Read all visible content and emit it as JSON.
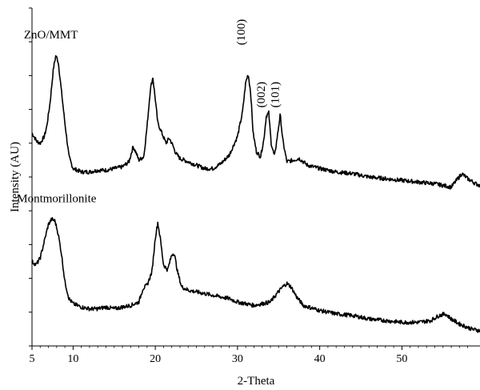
{
  "chart_data": {
    "type": "line",
    "xlabel": "2-Theta",
    "ylabel": "Intensity (AU)",
    "xlim": [
      5,
      59.5
    ],
    "ylim": [
      0,
      10
    ],
    "x_ticks": [
      5,
      10,
      20,
      30,
      40,
      50
    ],
    "grid": false,
    "legend": "none",
    "series": [
      {
        "name": "ZnO/MMT",
        "color": "#000000",
        "points": [
          [
            5.0,
            6.3
          ],
          [
            5.6,
            6.05
          ],
          [
            6.0,
            6.0
          ],
          [
            6.5,
            6.2
          ],
          [
            6.8,
            6.5
          ],
          [
            7.2,
            7.2
          ],
          [
            7.6,
            8.2
          ],
          [
            7.9,
            8.6
          ],
          [
            8.2,
            8.4
          ],
          [
            8.6,
            7.5
          ],
          [
            9.0,
            6.6
          ],
          [
            9.5,
            5.6
          ],
          [
            10.0,
            5.25
          ],
          [
            11.0,
            5.15
          ],
          [
            12.0,
            5.15
          ],
          [
            13.0,
            5.2
          ],
          [
            14.0,
            5.2
          ],
          [
            15.0,
            5.25
          ],
          [
            16.0,
            5.3
          ],
          [
            16.8,
            5.45
          ],
          [
            17.3,
            5.9
          ],
          [
            17.6,
            5.75
          ],
          [
            18.0,
            5.5
          ],
          [
            18.6,
            5.6
          ],
          [
            19.0,
            6.5
          ],
          [
            19.4,
            7.6
          ],
          [
            19.7,
            7.95
          ],
          [
            20.0,
            7.3
          ],
          [
            20.3,
            6.6
          ],
          [
            20.8,
            6.3
          ],
          [
            21.3,
            6.0
          ],
          [
            21.7,
            6.15
          ],
          [
            22.1,
            5.95
          ],
          [
            22.5,
            5.7
          ],
          [
            23.0,
            5.55
          ],
          [
            24.0,
            5.45
          ],
          [
            25.0,
            5.35
          ],
          [
            26.0,
            5.25
          ],
          [
            27.0,
            5.25
          ],
          [
            28.0,
            5.4
          ],
          [
            29.0,
            5.65
          ],
          [
            30.0,
            6.2
          ],
          [
            30.6,
            6.9
          ],
          [
            31.0,
            7.8
          ],
          [
            31.3,
            8.05
          ],
          [
            31.6,
            7.5
          ],
          [
            31.9,
            6.3
          ],
          [
            32.3,
            5.75
          ],
          [
            32.8,
            5.6
          ],
          [
            33.2,
            6.1
          ],
          [
            33.5,
            6.8
          ],
          [
            33.8,
            6.9
          ],
          [
            34.1,
            6.0
          ],
          [
            34.5,
            5.6
          ],
          [
            34.9,
            6.3
          ],
          [
            35.2,
            6.85
          ],
          [
            35.5,
            6.1
          ],
          [
            36.0,
            5.45
          ],
          [
            36.8,
            5.5
          ],
          [
            37.5,
            5.55
          ],
          [
            38.5,
            5.35
          ],
          [
            40.0,
            5.25
          ],
          [
            42.0,
            5.15
          ],
          [
            44.0,
            5.1
          ],
          [
            46.0,
            5.0
          ],
          [
            48.0,
            4.95
          ],
          [
            50.0,
            4.9
          ],
          [
            52.0,
            4.85
          ],
          [
            54.0,
            4.8
          ],
          [
            55.0,
            4.75
          ],
          [
            56.0,
            4.7
          ],
          [
            56.8,
            4.95
          ],
          [
            57.3,
            5.1
          ],
          [
            58.0,
            4.95
          ],
          [
            59.0,
            4.8
          ],
          [
            59.5,
            4.75
          ]
        ]
      },
      {
        "name": "Montmorillonite",
        "color": "#000000",
        "points": [
          [
            5.0,
            2.5
          ],
          [
            5.5,
            2.4
          ],
          [
            6.0,
            2.6
          ],
          [
            6.5,
            3.1
          ],
          [
            7.0,
            3.6
          ],
          [
            7.4,
            3.75
          ],
          [
            7.8,
            3.7
          ],
          [
            8.2,
            3.3
          ],
          [
            8.6,
            2.7
          ],
          [
            9.0,
            1.9
          ],
          [
            9.5,
            1.4
          ],
          [
            10.0,
            1.25
          ],
          [
            11.0,
            1.15
          ],
          [
            12.0,
            1.1
          ],
          [
            13.0,
            1.1
          ],
          [
            14.0,
            1.15
          ],
          [
            15.0,
            1.1
          ],
          [
            16.0,
            1.15
          ],
          [
            17.0,
            1.2
          ],
          [
            18.0,
            1.3
          ],
          [
            18.5,
            1.7
          ],
          [
            19.0,
            1.8
          ],
          [
            19.6,
            2.2
          ],
          [
            20.0,
            3.2
          ],
          [
            20.3,
            3.65
          ],
          [
            20.6,
            3.2
          ],
          [
            21.0,
            2.4
          ],
          [
            21.5,
            2.25
          ],
          [
            22.0,
            2.7
          ],
          [
            22.3,
            2.75
          ],
          [
            22.7,
            2.2
          ],
          [
            23.2,
            1.75
          ],
          [
            24.0,
            1.65
          ],
          [
            25.0,
            1.6
          ],
          [
            26.0,
            1.55
          ],
          [
            27.0,
            1.5
          ],
          [
            28.0,
            1.45
          ],
          [
            29.0,
            1.4
          ],
          [
            30.0,
            1.3
          ],
          [
            31.0,
            1.25
          ],
          [
            32.0,
            1.2
          ],
          [
            33.0,
            1.25
          ],
          [
            34.0,
            1.3
          ],
          [
            34.8,
            1.55
          ],
          [
            35.5,
            1.75
          ],
          [
            36.0,
            1.85
          ],
          [
            36.5,
            1.75
          ],
          [
            37.2,
            1.45
          ],
          [
            38.0,
            1.2
          ],
          [
            40.0,
            1.05
          ],
          [
            42.0,
            0.95
          ],
          [
            44.0,
            0.9
          ],
          [
            46.0,
            0.8
          ],
          [
            48.0,
            0.75
          ],
          [
            50.0,
            0.7
          ],
          [
            52.0,
            0.7
          ],
          [
            53.5,
            0.75
          ],
          [
            54.5,
            0.9
          ],
          [
            55.3,
            0.95
          ],
          [
            56.0,
            0.8
          ],
          [
            57.0,
            0.65
          ],
          [
            58.5,
            0.5
          ],
          [
            59.5,
            0.45
          ]
        ]
      }
    ],
    "annotations": [
      {
        "text": "ZnO/MMT",
        "x": 7.3,
        "y": 9.1
      },
      {
        "text": "Montmorillonite",
        "x": 8.0,
        "y": 4.25
      },
      {
        "text": "(100)",
        "x": 30.9,
        "y": 8.9,
        "rotate": -90
      },
      {
        "text": "(002)",
        "x": 33.3,
        "y": 7.05,
        "rotate": -90
      },
      {
        "text": "(101)",
        "x": 35.0,
        "y": 7.05,
        "rotate": -90
      }
    ]
  }
}
